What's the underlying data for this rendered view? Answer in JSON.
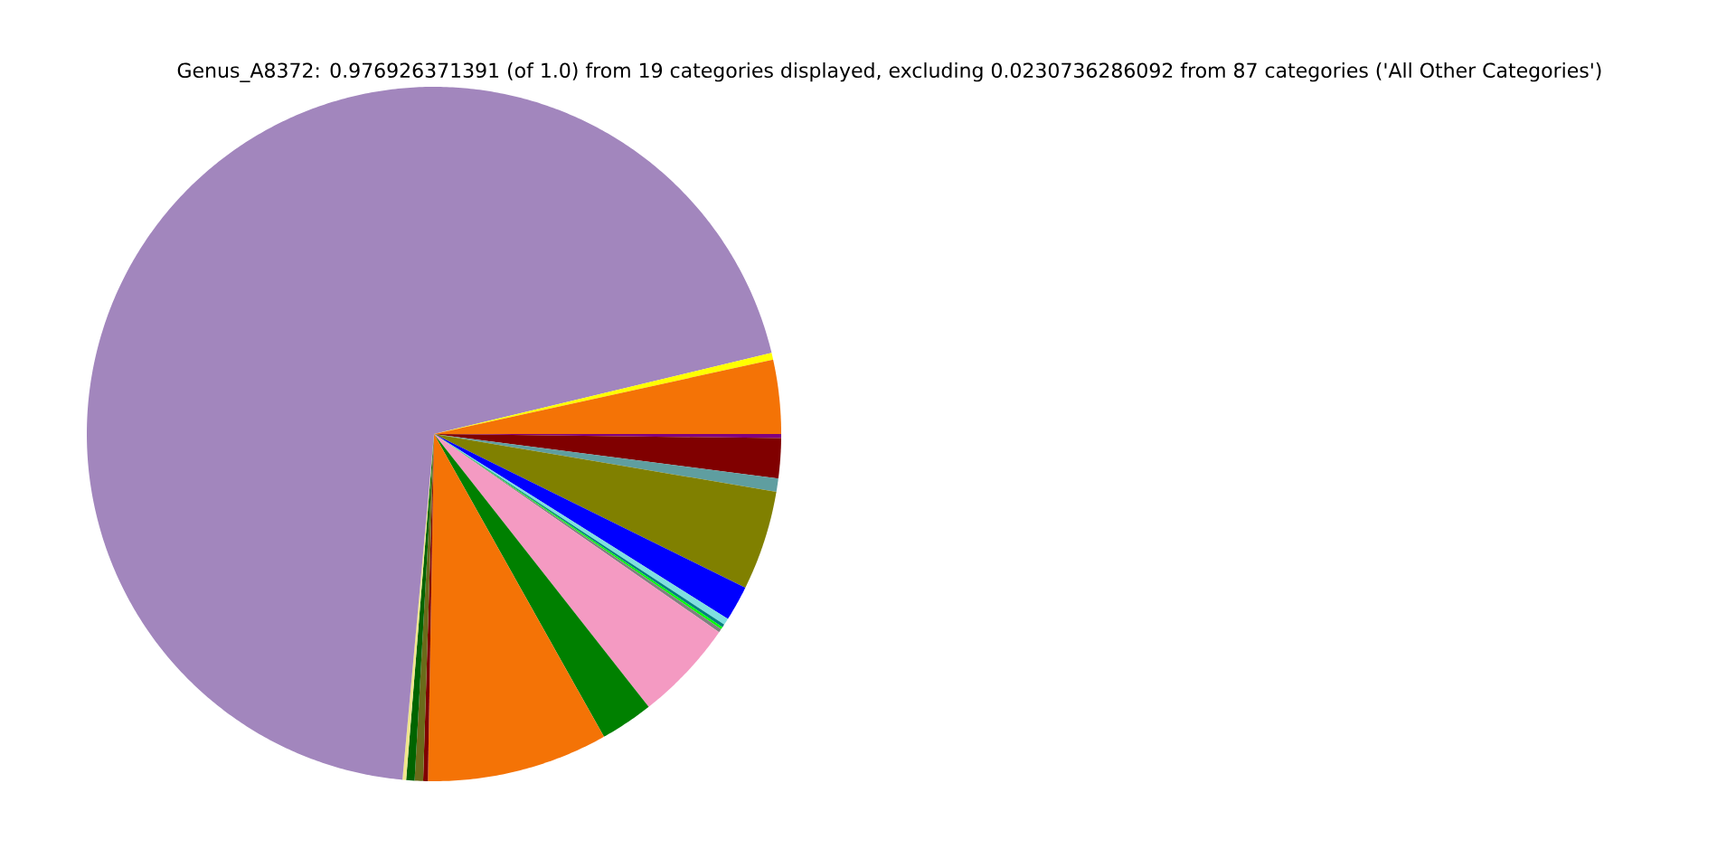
{
  "chart_data": {
    "type": "pie",
    "title": "Genus_A8372: 0.976926371391 (of 1.0) from 19 categories displayed, excluding 0.0230736286092 from 87 categories ('All Other Categories')",
    "categories": [
      null,
      null,
      null,
      null,
      null,
      null,
      null,
      null,
      null,
      null,
      null,
      null,
      null,
      null,
      null,
      null,
      null,
      null,
      null
    ],
    "values": [
      0.19,
      1.86,
      0.61,
      4.64,
      1.64,
      0.31,
      0.14,
      0.11,
      0.17,
      4.72,
      2.47,
      8.42,
      0.22,
      0.39,
      0.39,
      0.17,
      69.8,
      0.31,
      3.44
    ],
    "colors": [
      "#800080",
      "#800000",
      "#5f9ea0",
      "#808000",
      "#0000ff",
      "#7fdfe0",
      "#008080",
      "#00ff00",
      "#808080",
      "#f49ac2",
      "#008000",
      "#f47306",
      "#800000",
      "#6b6b1a",
      "#006400",
      "#f0e68c",
      "#a286bd",
      "#ffff00",
      "#f47306"
    ]
  }
}
